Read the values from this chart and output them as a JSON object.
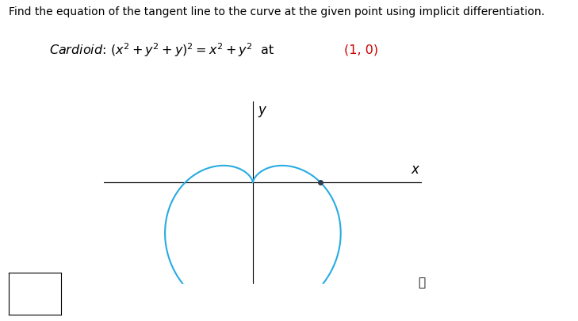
{
  "title_text": "Find the equation of the tangent line to the curve at the given point using implicit differentiation.",
  "point_text": "(1, 0)",
  "point_color": "#cc0000",
  "curve_color": "#29abe2",
  "curve_linewidth": 1.5,
  "dot_color": "#2c3e50",
  "dot_size": 25,
  "point_x": 1.0,
  "point_y": 0.0,
  "background_color": "#ffffff",
  "title_fontsize": 10.0,
  "equation_fontsize": 11.5,
  "axis_label_fontsize": 12,
  "xlim": [
    -2.2,
    2.5
  ],
  "ylim": [
    -1.5,
    1.2
  ],
  "figsize": [
    7.29,
    4.05
  ],
  "dpi": 100
}
